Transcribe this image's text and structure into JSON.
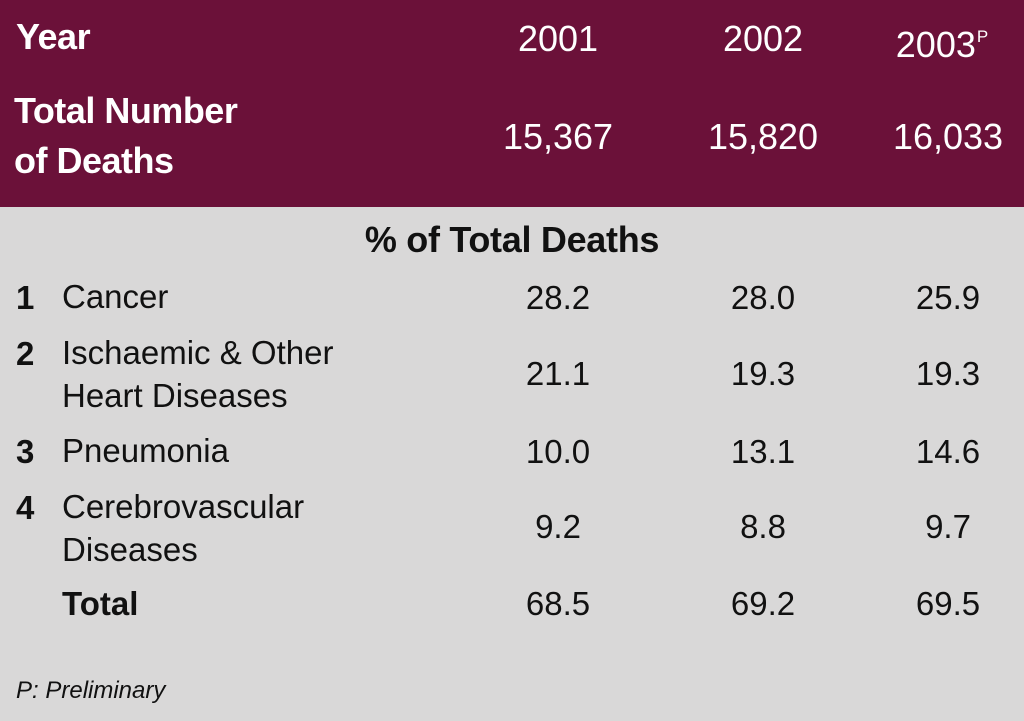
{
  "chart_data": {
    "type": "table",
    "header": {
      "year_label": "Year",
      "years": [
        "2001",
        "2002",
        "2003"
      ],
      "preliminary_mark": "P",
      "total_deaths_label_line1": "Total Number",
      "total_deaths_label_line2": "of Deaths",
      "total_deaths": [
        "15,367",
        "15,820",
        "16,033"
      ]
    },
    "section_title": "% of Total Deaths",
    "rows": [
      {
        "rank": "1",
        "label_line1": "Cancer",
        "label_line2": "",
        "values": [
          "28.2",
          "28.0",
          "25.9"
        ]
      },
      {
        "rank": "2",
        "label_line1": "Ischaemic & Other",
        "label_line2": "Heart Diseases",
        "values": [
          "21.1",
          "19.3",
          "19.3"
        ]
      },
      {
        "rank": "3",
        "label_line1": "Pneumonia",
        "label_line2": "",
        "values": [
          "10.0",
          "13.1",
          "14.6"
        ]
      },
      {
        "rank": "4",
        "label_line1": "Cerebrovascular",
        "label_line2": "Diseases",
        "values": [
          "9.2",
          "8.8",
          "9.7"
        ]
      }
    ],
    "total": {
      "label": "Total",
      "values": [
        "68.5",
        "69.2",
        "69.5"
      ]
    },
    "footnote": "P: Preliminary"
  },
  "colors": {
    "header_bg": "#6b1139",
    "body_bg": "#d9d8d8",
    "header_text": "#ffffff",
    "body_text": "#111111"
  }
}
